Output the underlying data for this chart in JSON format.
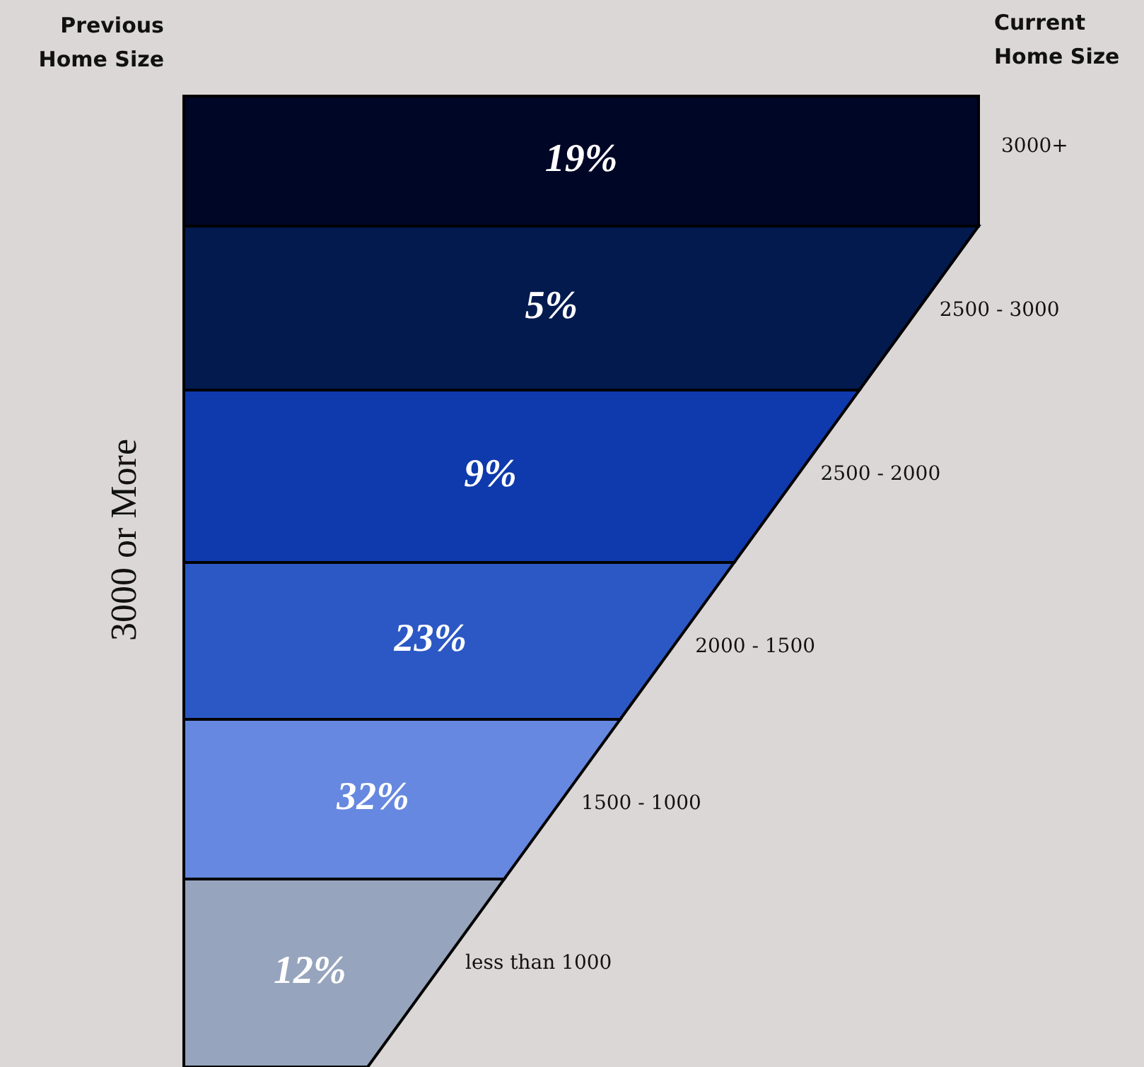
{
  "chart_data": {
    "type": "other",
    "ylabel": "3000 or More",
    "categories": [
      "3000+",
      "2500 - 3000",
      "2500 - 2000",
      "2000 - 1500",
      "1500 - 1000",
      "less than 1000"
    ],
    "values": [
      19,
      5,
      9,
      23,
      32,
      12
    ],
    "value_labels": [
      "19%",
      "5%",
      "9%",
      "23%",
      "32%",
      "12%"
    ],
    "colors": [
      "#000626",
      "#031a4f",
      "#0f3aad",
      "#2b58c4",
      "#6688e0",
      "#96a4bd"
    ],
    "annotations": [
      "Previous Home Size",
      "Current Home Size"
    ]
  }
}
